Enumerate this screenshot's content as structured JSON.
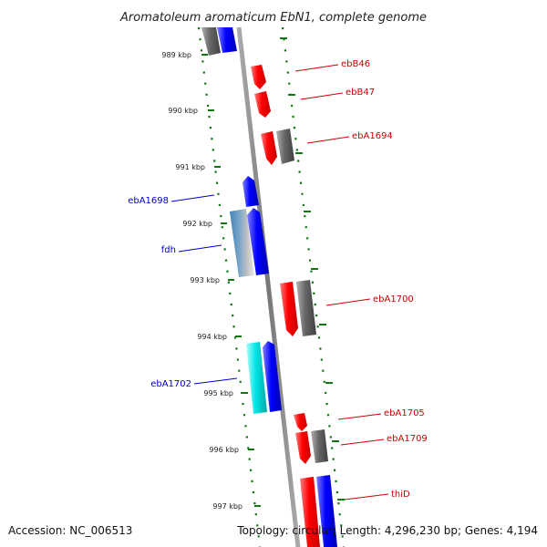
{
  "title": "Aromatoleum aromaticum EbN1, complete genome",
  "footer": {
    "accession": "Accession: NC_006513",
    "topology": "Topology: circular; Length: 4,296,230 bp; Genes: 4,194"
  },
  "ruler_ticks": [
    "989 kbp",
    "990 kbp",
    "991 kbp",
    "992 kbp",
    "993 kbp",
    "994 kbp",
    "995 kbp",
    "996 kbp",
    "997 kbp"
  ],
  "gene_labels_right": [
    "ebB46",
    "ebB47",
    "ebA1694",
    "ebA1700",
    "ebA1705",
    "ebA1709",
    "thiD"
  ],
  "gene_labels_left": [
    "ebA1698",
    "fdh",
    "ebA1702"
  ],
  "colors": {
    "forward_gene": "#ff0000",
    "reverse_gene": "#0000ff",
    "other_gene": "#666666",
    "highlight_gene": "#00e5e5",
    "steel_gene": "#4682b4",
    "right_label": "#cc0000",
    "left_label": "#0000cc",
    "dotted_ring": "#117711",
    "backbone": "#888888"
  }
}
